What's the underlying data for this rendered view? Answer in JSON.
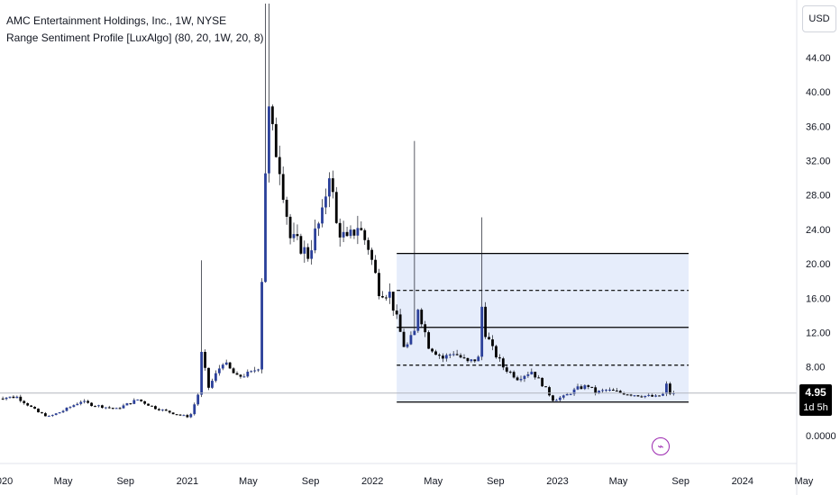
{
  "legend": {
    "line1": "AMC Entertainment Holdings, Inc., 1W, NYSE",
    "line2": "Range Sentiment Profile [LuxAlgo] (80, 20, 1W, 20, 8)"
  },
  "currency_button": "USD",
  "last_price": {
    "price": "4.95",
    "countdown": "1d 5h"
  },
  "colors": {
    "up": "#2a3f9a",
    "down": "#000000",
    "profile_fill": "#e6edfb",
    "profile_line": "#000000",
    "flash": "#9c27b0"
  },
  "icons": {
    "flash": "lightning-icon"
  },
  "chart_data": {
    "type": "candlestick",
    "title": "AMC Entertainment Holdings, Inc., 1W, NYSE",
    "indicator": "Range Sentiment Profile [LuxAlgo] (80, 20, 1W, 20, 8)",
    "y_ticks": [
      "44.00",
      "40.00",
      "36.00",
      "32.00",
      "28.00",
      "24.00",
      "20.00",
      "16.00",
      "12.00",
      "8.00",
      "4.00",
      "0.0000"
    ],
    "y_tick_values": [
      44,
      40,
      36,
      32,
      28,
      24,
      20,
      16,
      12,
      8,
      4,
      0
    ],
    "x_ticks": [
      "2020",
      "May",
      "Sep",
      "2021",
      "May",
      "Sep",
      "2022",
      "May",
      "Sep",
      "2023",
      "May",
      "Sep",
      "2024",
      "May"
    ],
    "x_tick_dates": [
      "2020-01",
      "2020-05",
      "2020-09",
      "2021-01",
      "2021-05",
      "2021-09",
      "2022-01",
      "2022-05",
      "2022-09",
      "2023-01",
      "2023-05",
      "2023-09",
      "2024-01",
      "2024-05"
    ],
    "last_price": 4.95,
    "range_profile": {
      "top": 21.2,
      "bottom": 3.9,
      "levels": [
        {
          "value": 21.2,
          "style": "solid"
        },
        {
          "value": 16.9,
          "style": "dashed"
        },
        {
          "value": 12.6,
          "style": "solid"
        },
        {
          "value": 8.2,
          "style": "dashed"
        },
        {
          "value": 3.9,
          "style": "solid"
        }
      ]
    },
    "anchors": [
      [
        "2019-12-20",
        4.4
      ],
      [
        "2020-01-31",
        4.5
      ],
      [
        "2020-03-13",
        2.7
      ],
      [
        "2020-04-03",
        2.2
      ],
      [
        "2020-05-01",
        2.9
      ],
      [
        "2020-06-05",
        4.0
      ],
      [
        "2020-06-26",
        3.6
      ],
      [
        "2020-08-14",
        3.1
      ],
      [
        "2020-09-25",
        4.2
      ],
      [
        "2020-10-30",
        3.2
      ],
      [
        "2020-12-04",
        2.6
      ],
      [
        "2020-12-31",
        2.2
      ],
      [
        "2021-01-08",
        2.5
      ],
      [
        "2021-01-22",
        4.8
      ],
      [
        "2021-01-29",
        9.5
      ],
      [
        "2021-02-12",
        5.6
      ],
      [
        "2021-03-12",
        8.6
      ],
      [
        "2021-04-09",
        6.8
      ],
      [
        "2021-05-07",
        7.3
      ],
      [
        "2021-05-21",
        8.0
      ],
      [
        "2021-05-28",
        18.3
      ],
      [
        "2021-06-04",
        31.0
      ],
      [
        "2021-06-11",
        37.5
      ],
      [
        "2021-06-18",
        35.0
      ],
      [
        "2021-07-02",
        31.5
      ],
      [
        "2021-07-23",
        23.0
      ],
      [
        "2021-08-13",
        22.0
      ],
      [
        "2021-08-27",
        21.0
      ],
      [
        "2021-09-10",
        23.5
      ],
      [
        "2021-09-24",
        25.5
      ],
      [
        "2021-10-08",
        31.0
      ],
      [
        "2021-10-22",
        24.5
      ],
      [
        "2021-11-12",
        22.5
      ],
      [
        "2021-12-03",
        24.5
      ],
      [
        "2021-12-24",
        22.0
      ],
      [
        "2022-01-14",
        17.0
      ],
      [
        "2022-02-04",
        16.5
      ],
      [
        "2022-03-04",
        10.5
      ],
      [
        "2022-03-11",
        10.5
      ],
      [
        "2022-03-25",
        12.0
      ],
      [
        "2022-04-01",
        15.0
      ],
      [
        "2022-04-22",
        10.5
      ],
      [
        "2022-05-20",
        9.0
      ],
      [
        "2022-06-10",
        9.7
      ],
      [
        "2022-07-08",
        8.5
      ],
      [
        "2022-07-29",
        9.0
      ],
      [
        "2022-08-05",
        15.0
      ],
      [
        "2022-08-12",
        12.0
      ],
      [
        "2022-08-26",
        10.0
      ],
      [
        "2022-09-16",
        8.0
      ],
      [
        "2022-10-14",
        6.7
      ],
      [
        "2022-11-11",
        7.5
      ],
      [
        "2022-12-02",
        6.0
      ],
      [
        "2022-12-23",
        4.2
      ],
      [
        "2023-01-13",
        4.5
      ],
      [
        "2023-02-10",
        5.5
      ],
      [
        "2023-03-03",
        5.8
      ],
      [
        "2023-03-17",
        5.0
      ],
      [
        "2023-04-07",
        5.3
      ],
      [
        "2023-05-05",
        5.0
      ],
      [
        "2023-06-09",
        4.7
      ],
      [
        "2023-07-14",
        4.5
      ],
      [
        "2023-07-28",
        4.8
      ],
      [
        "2023-08-04",
        5.9
      ],
      [
        "2023-08-11",
        4.9
      ],
      [
        "2023-08-18",
        4.95
      ]
    ],
    "grid": false
  }
}
